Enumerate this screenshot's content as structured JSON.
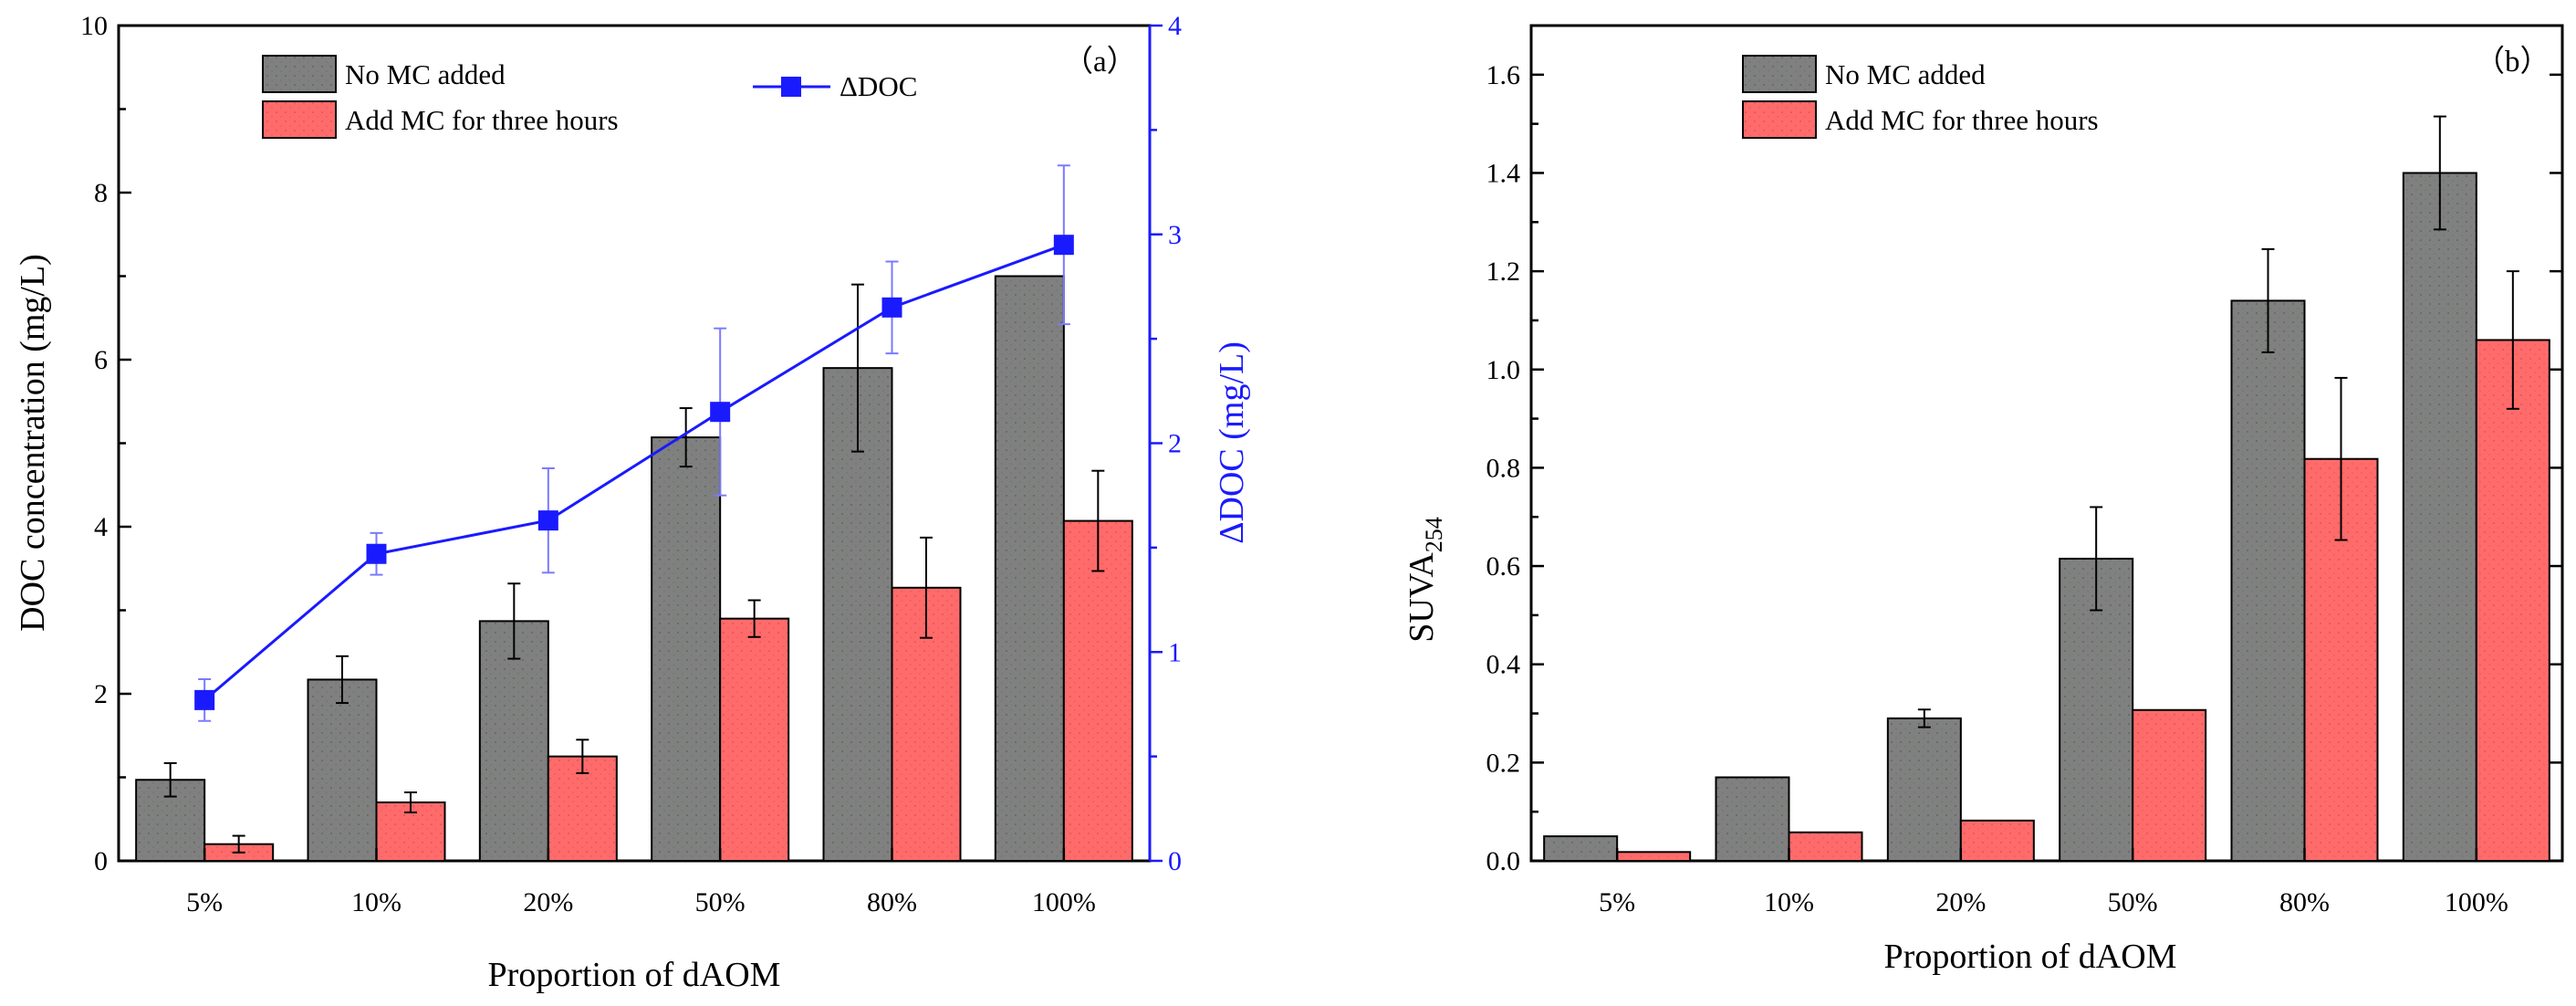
{
  "chart_data": [
    {
      "type": "bar",
      "panel_label": "（a）",
      "categories": [
        "5%",
        "10%",
        "20%",
        "50%",
        "80%",
        "100%"
      ],
      "xlabel": "Proportion of dAOM",
      "ylabel": "DOC concentration (mg/L)",
      "ylim": [
        0,
        10
      ],
      "yticks": [
        "0",
        "2",
        "4",
        "6",
        "8",
        "10"
      ],
      "y2label": "ΔDOC (mg/L)",
      "y2lim": [
        0,
        4
      ],
      "y2ticks": [
        "0",
        "1",
        "2",
        "3",
        "4"
      ],
      "series": [
        {
          "name": "No MC added",
          "color": "#808080",
          "values": [
            0.97,
            2.17,
            2.87,
            5.07,
            5.9,
            7.0
          ],
          "errors": [
            0.2,
            0.28,
            0.45,
            0.35,
            1.0,
            0.0
          ]
        },
        {
          "name": "Add MC for three hours",
          "color": "#ff6b6b",
          "values": [
            0.2,
            0.7,
            1.25,
            2.9,
            3.27,
            4.07
          ],
          "errors": [
            0.1,
            0.12,
            0.2,
            0.22,
            0.6,
            0.6
          ]
        }
      ],
      "line_series": {
        "name": "ΔDOC",
        "color": "#1a1aff",
        "values": [
          0.77,
          1.47,
          1.63,
          2.15,
          2.65,
          2.95
        ],
        "errors": [
          0.1,
          0.1,
          0.25,
          0.4,
          0.22,
          0.38
        ]
      }
    },
    {
      "type": "bar",
      "panel_label": "（b）",
      "categories": [
        "5%",
        "10%",
        "20%",
        "50%",
        "80%",
        "100%"
      ],
      "xlabel": "Proportion of dAOM",
      "ylabel_main": "SUVA",
      "ylabel_sub": "254",
      "ylim": [
        0,
        1.7
      ],
      "yticks": [
        "0.0",
        "0.2",
        "0.4",
        "0.6",
        "0.8",
        "1.0",
        "1.2",
        "1.4",
        "1.6"
      ],
      "series": [
        {
          "name": "No MC added",
          "color": "#808080",
          "values": [
            0.05,
            0.17,
            0.29,
            0.615,
            1.14,
            1.4
          ],
          "errors": [
            0.0,
            0.0,
            0.018,
            0.105,
            0.105,
            0.115
          ]
        },
        {
          "name": "Add MC for three hours",
          "color": "#ff6b6b",
          "values": [
            0.018,
            0.058,
            0.082,
            0.307,
            0.818,
            1.06
          ],
          "errors": [
            0.0,
            0.0,
            0.0,
            0.0,
            0.165,
            0.14
          ]
        }
      ]
    }
  ]
}
